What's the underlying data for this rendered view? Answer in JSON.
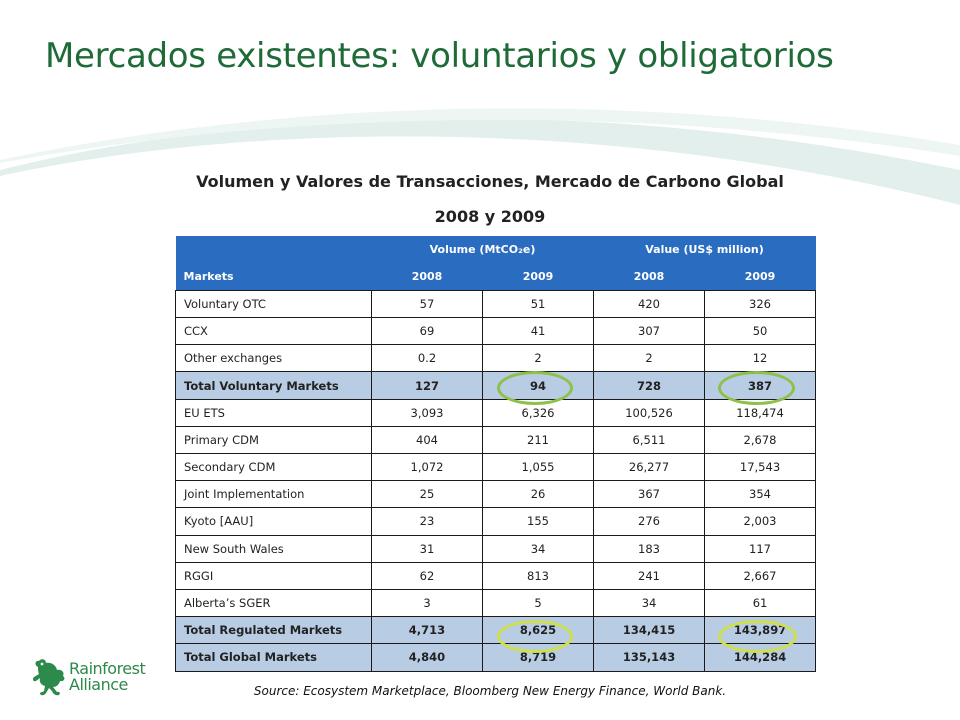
{
  "slide": {
    "title": "Mercados existentes: voluntarios y obligatorios",
    "table_title": "Volumen y Valores de Transacciones,  Mercado de Carbono Global",
    "table_subtitle": "2008 y 2009",
    "source": "Source: Ecosystem Marketplace, Bloomberg New Energy Finance, World Bank.",
    "colors": {
      "title": "#1e6b38",
      "header": "#2a6cc0",
      "total_row": "#b8cce4",
      "highlight": "#8ec04a"
    }
  },
  "table": {
    "group_headers": [
      "Volume (MtCO₂e)",
      "Value (US$ million)"
    ],
    "columns": [
      "Markets",
      "2008",
      "2009",
      "2008",
      "2009"
    ],
    "rows": [
      {
        "label": "Voluntary OTC",
        "values": [
          "57",
          "51",
          "420",
          "326"
        ],
        "total": false
      },
      {
        "label": "CCX",
        "values": [
          "69",
          "41",
          "307",
          "50"
        ],
        "total": false
      },
      {
        "label": "Other exchanges",
        "values": [
          "0.2",
          "2",
          "2",
          "12"
        ],
        "total": false
      },
      {
        "label": "Total Voluntary Markets",
        "values": [
          "127",
          "94",
          "728",
          "387"
        ],
        "total": true
      },
      {
        "label": "EU ETS",
        "values": [
          "3,093",
          "6,326",
          "100,526",
          "118,474"
        ],
        "total": false
      },
      {
        "label": "Primary CDM",
        "values": [
          "404",
          "211",
          "6,511",
          "2,678"
        ],
        "total": false
      },
      {
        "label": "Secondary CDM",
        "values": [
          "1,072",
          "1,055",
          "26,277",
          "17,543"
        ],
        "total": false
      },
      {
        "label": "Joint Implementation",
        "values": [
          "25",
          "26",
          "367",
          "354"
        ],
        "total": false
      },
      {
        "label": "Kyoto [AAU]",
        "values": [
          "23",
          "155",
          "276",
          "2,003"
        ],
        "total": false
      },
      {
        "label": "New South Wales",
        "values": [
          "31",
          "34",
          "183",
          "117"
        ],
        "total": false
      },
      {
        "label": "RGGI",
        "values": [
          "62",
          "813",
          "241",
          "2,667"
        ],
        "total": false
      },
      {
        "label": "Alberta’s SGER",
        "values": [
          "3",
          "5",
          "34",
          "61"
        ],
        "total": false
      },
      {
        "label": "Total Regulated Markets",
        "values": [
          "4,713",
          "8,625",
          "134,415",
          "143,897"
        ],
        "total": true
      },
      {
        "label": "Total Global Markets",
        "values": [
          "4,840",
          "8,719",
          "135,143",
          "144,284"
        ],
        "total": true
      }
    ]
  },
  "logo": {
    "line1": "Rainforest",
    "line2": "Alliance",
    "icon": "frog-icon"
  }
}
